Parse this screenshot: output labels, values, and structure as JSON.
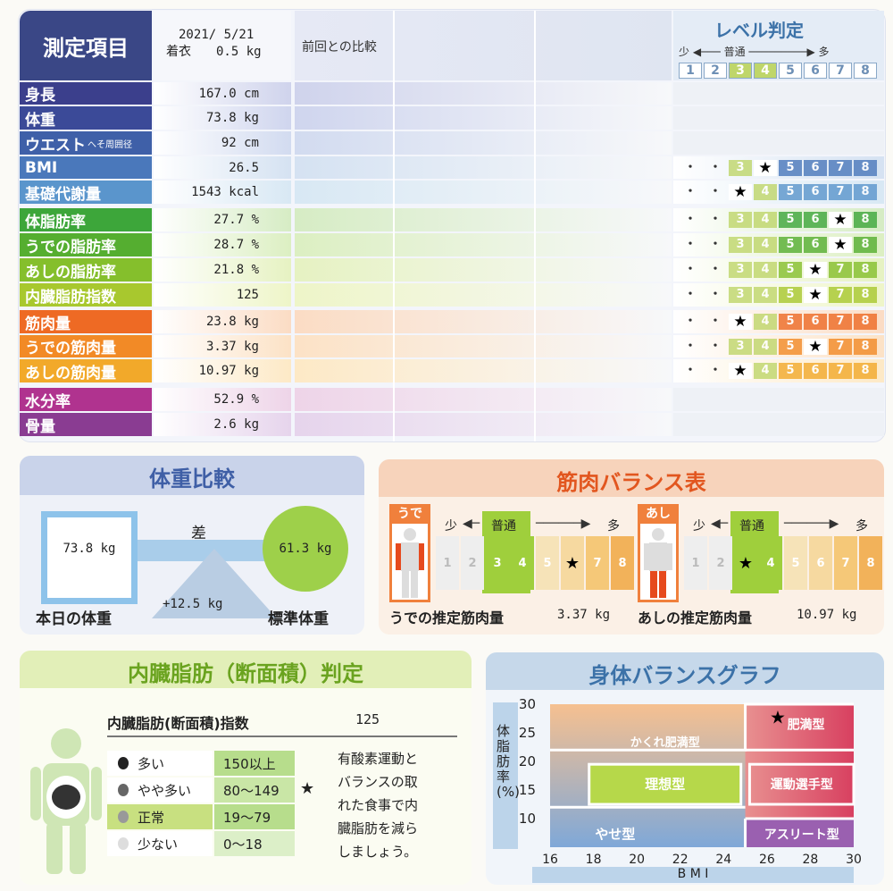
{
  "header": {
    "title": "測定項目",
    "date": "2021/ 5/21",
    "clothes": "着衣　　0.5 kg",
    "compare": "前回との比較",
    "level_title": "レベル判定",
    "level_less": "少",
    "level_normal": "普通",
    "level_more": "多",
    "levels": [
      "1",
      "2",
      "3",
      "4",
      "5",
      "6",
      "7",
      "8"
    ]
  },
  "rows": [
    {
      "label": "身長",
      "note": "",
      "value": "167.0 cm",
      "color": "#3b3f8c",
      "band": "#cfd3ec",
      "level": null
    },
    {
      "label": "体重",
      "note": "",
      "value": "73.8 kg",
      "color": "#3b4a98",
      "band": "#cfd5ee",
      "level": null
    },
    {
      "label": "ウエスト",
      "note": "へそ周囲径",
      "value": "92 cm",
      "color": "#3f60a8",
      "band": "#d2dbf0",
      "level": null
    },
    {
      "label": "BMI",
      "note": "",
      "value": "26.5",
      "color": "#4a78bb",
      "band": "#d5e2f2",
      "level": 4
    },
    {
      "label": "基礎代謝量",
      "note": "",
      "value": "1543 kcal",
      "color": "#5a95cc",
      "band": "#d8e8f4",
      "level": 3
    },
    {
      "label": "体脂肪率",
      "note": "",
      "value": "27.7 %",
      "color": "#3da63a",
      "band": "#d6ecc4",
      "level": 7
    },
    {
      "label": "うでの脂肪率",
      "note": "",
      "value": "28.7 %",
      "color": "#55ae30",
      "band": "#dcefc2",
      "level": 7
    },
    {
      "label": "あしの脂肪率",
      "note": "",
      "value": "21.8 %",
      "color": "#85bf2c",
      "band": "#e6f2c2",
      "level": 6
    },
    {
      "label": "内臓脂肪指数",
      "note": "",
      "value": "125",
      "color": "#a8c82e",
      "band": "#eef5c8",
      "level": 6
    },
    {
      "label": "筋肉量",
      "note": "",
      "value": "23.8 kg",
      "color": "#ee6a24",
      "band": "#fbdcc4",
      "level": 3
    },
    {
      "label": "うでの筋肉量",
      "note": "",
      "value": "3.37 kg",
      "color": "#f28a26",
      "band": "#fce2c6",
      "level": 6
    },
    {
      "label": "あしの筋肉量",
      "note": "",
      "value": "10.97 kg",
      "color": "#f2a92a",
      "band": "#fde9c6",
      "level": 3
    },
    {
      "label": "水分率",
      "note": "",
      "value": "52.9 %",
      "color": "#b0338f",
      "band": "#eed4e8",
      "level": null
    },
    {
      "label": "骨量",
      "note": "",
      "value": "2.6 kg",
      "color": "#8a3c92",
      "band": "#e6d4ec",
      "level": null
    }
  ],
  "weight_compare": {
    "title": "体重比較",
    "today_value": "73.8 kg",
    "today_label": "本日の体重",
    "diff_label": "差",
    "diff_value": "+12.5 kg",
    "standard_value": "61.3 kg",
    "standard_label": "標準体重"
  },
  "muscle_balance": {
    "title": "筋肉バランス表",
    "arm_tag": "うで",
    "leg_tag": "あし",
    "less": "少",
    "normal": "普通",
    "more": "多",
    "levels": [
      "1",
      "2",
      "3",
      "4",
      "5",
      "6",
      "7",
      "8"
    ],
    "arm_level": 6,
    "leg_level": 3,
    "arm_label": "うでの推定筋肉量",
    "arm_value": "3.37 kg",
    "leg_label": "あしの推定筋肉量",
    "leg_value": "10.97 kg"
  },
  "visceral": {
    "title": "内臓脂肪（断面積）判定",
    "index_label": "内臓脂肪(断面積)指数",
    "index_value": "125",
    "legend": [
      {
        "label": "多い",
        "range": "150以上",
        "mark": ""
      },
      {
        "label": "やや多い",
        "range": "80〜149",
        "mark": "★"
      },
      {
        "label": "正常",
        "range": "19〜79",
        "mark": ""
      },
      {
        "label": "少ない",
        "range": "0〜18",
        "mark": ""
      }
    ],
    "advice": [
      "有酸素運動と",
      "バランスの取",
      "れた食事で内",
      "臓脂肪を減ら",
      "しましょう。"
    ]
  },
  "body_balance": {
    "title": "身体バランスグラフ",
    "ylabel": "体脂肪率(%)",
    "xlabel": "B M I",
    "yticks": [
      "30",
      "25",
      "20",
      "15",
      "10"
    ],
    "xticks": [
      "16",
      "18",
      "20",
      "22",
      "24",
      "26",
      "28",
      "30"
    ],
    "regions": {
      "obese": "肥満型",
      "hidden_obese": "かくれ肥満型",
      "ideal": "理想型",
      "athlete_type": "運動選手型",
      "thin": "やせ型",
      "athlete": "アスリート型"
    },
    "point": {
      "bmi": 26.5,
      "fat": 27.7,
      "mark": "★"
    }
  }
}
